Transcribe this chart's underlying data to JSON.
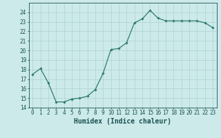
{
  "x": [
    0,
    1,
    2,
    3,
    4,
    5,
    6,
    7,
    8,
    9,
    10,
    11,
    12,
    13,
    14,
    15,
    16,
    17,
    18,
    19,
    20,
    21,
    22,
    23
  ],
  "y": [
    17.5,
    18.1,
    16.6,
    14.6,
    14.6,
    14.9,
    15.0,
    15.2,
    15.9,
    17.6,
    20.1,
    20.2,
    20.8,
    22.9,
    23.3,
    24.2,
    23.4,
    23.1,
    23.1,
    23.1,
    23.1,
    23.1,
    22.9,
    22.4
  ],
  "line_color": "#2d7a6e",
  "marker": "D",
  "marker_size": 1.8,
  "bg_color": "#cceaea",
  "grid_color": "#b0d0d0",
  "xlabel": "Humidex (Indice chaleur)",
  "xlim": [
    -0.5,
    23.5
  ],
  "ylim": [
    14,
    25
  ],
  "yticks": [
    14,
    15,
    16,
    17,
    18,
    19,
    20,
    21,
    22,
    23,
    24
  ],
  "xtick_labels": [
    "0",
    "1",
    "2",
    "3",
    "4",
    "5",
    "6",
    "7",
    "8",
    "9",
    "10",
    "11",
    "12",
    "13",
    "14",
    "15",
    "16",
    "17",
    "18",
    "19",
    "20",
    "21",
    "22",
    "23"
  ],
  "tick_fontsize": 5.5,
  "xlabel_fontsize": 7.0,
  "label_color": "#1a5050"
}
